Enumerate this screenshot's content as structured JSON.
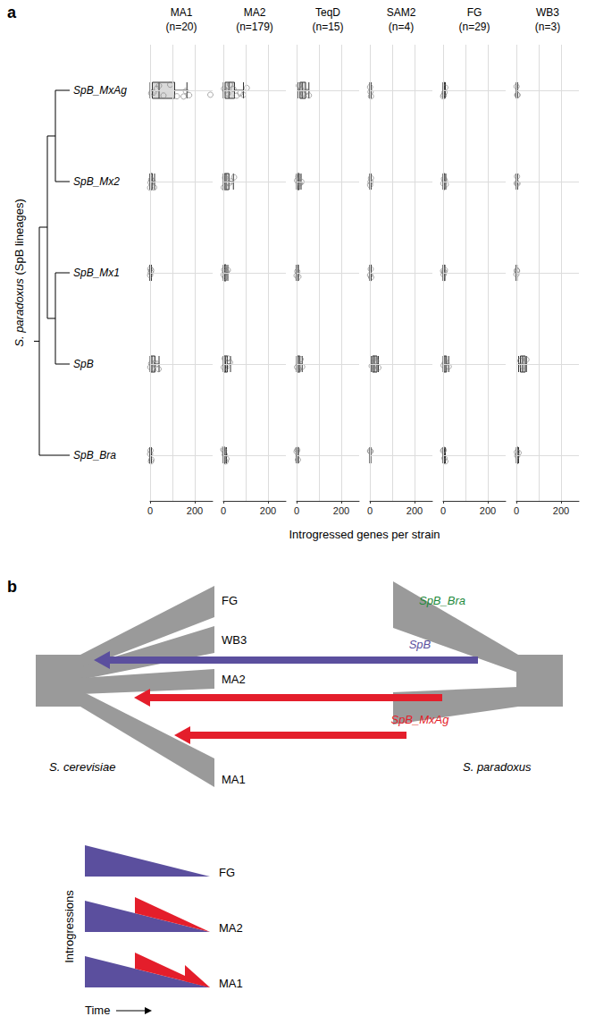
{
  "chart_data": {
    "type": "boxplot",
    "panel_label": "a",
    "x_label": "Introgressed genes per strain",
    "y_label": "S. paradoxus (SpB lineages)",
    "categories": [
      "SpB_MxAg",
      "SpB_Mx2",
      "SpB_Mx1",
      "SpB",
      "SpB_Bra"
    ],
    "tree": [
      [
        [
          "SpB_MxAg",
          "SpB_Mx2"
        ],
        [
          "SpB_Mx1",
          "SpB"
        ]
      ],
      "SpB_Bra"
    ],
    "xlim": [
      0,
      280
    ],
    "xticks": [
      0,
      200
    ],
    "grid": true,
    "color": "#d9d9d9",
    "facets": [
      {
        "title": "MA1",
        "subtitle": "(n=20)",
        "boxes": [
          [
            0,
            10,
            40,
            110,
            165
          ],
          [
            0,
            0,
            3,
            10,
            20
          ],
          [
            0,
            0,
            1,
            3,
            6
          ],
          [
            0,
            2,
            8,
            22,
            40
          ],
          [
            0,
            0,
            1,
            3,
            6
          ]
        ],
        "points": [
          [
            5,
            15,
            30,
            40,
            60,
            90,
            120,
            150,
            160,
            175,
            270
          ],
          [
            0,
            2,
            5,
            12,
            18
          ],
          [
            0,
            1,
            3,
            5
          ],
          [
            1,
            5,
            10,
            20,
            30,
            38
          ],
          [
            0,
            2,
            4,
            6
          ]
        ]
      },
      {
        "title": "MA2",
        "subtitle": "(n=179)",
        "boxes": [
          [
            0,
            8,
            25,
            50,
            90
          ],
          [
            0,
            5,
            12,
            25,
            45
          ],
          [
            0,
            2,
            6,
            12,
            20
          ],
          [
            0,
            4,
            10,
            18,
            32
          ],
          [
            0,
            1,
            4,
            8,
            14
          ]
        ],
        "points": [
          [
            3,
            10,
            20,
            30,
            45,
            60,
            75,
            90,
            105
          ],
          [
            2,
            8,
            15,
            25,
            35,
            48
          ],
          [
            1,
            4,
            8,
            14,
            20
          ],
          [
            2,
            6,
            12,
            20,
            30
          ],
          [
            0,
            3,
            6,
            10,
            14
          ]
        ]
      },
      {
        "title": "TeqD",
        "subtitle": "(n=15)",
        "boxes": [
          [
            5,
            15,
            25,
            40,
            55
          ],
          [
            0,
            2,
            6,
            12,
            20
          ],
          [
            0,
            0,
            2,
            5,
            8
          ],
          [
            0,
            3,
            8,
            15,
            25
          ],
          [
            0,
            0,
            2,
            5,
            8
          ]
        ],
        "points": [
          [
            10,
            20,
            30,
            45,
            55
          ],
          [
            2,
            8,
            15,
            22
          ],
          [
            0,
            3,
            8
          ],
          [
            2,
            10,
            18,
            25
          ],
          [
            0,
            3,
            6
          ]
        ]
      },
      {
        "title": "SAM2",
        "subtitle": "(n=4)",
        "boxes": [
          [
            0,
            1,
            2,
            4,
            5
          ],
          [
            0,
            1,
            2,
            4,
            5
          ],
          [
            0,
            1,
            3,
            5,
            6
          ],
          [
            5,
            12,
            20,
            32,
            38
          ],
          [
            0,
            1,
            2,
            3,
            4
          ]
        ],
        "points": [
          [
            1,
            3,
            5
          ],
          [
            1,
            3,
            5
          ],
          [
            1,
            4,
            6
          ],
          [
            8,
            18,
            28,
            38
          ],
          [
            1,
            3
          ]
        ]
      },
      {
        "title": "FG",
        "subtitle": "(n=29)",
        "boxes": [
          [
            0,
            1,
            3,
            6,
            10
          ],
          [
            0,
            1,
            3,
            7,
            12
          ],
          [
            0,
            1,
            2,
            5,
            8
          ],
          [
            0,
            3,
            8,
            15,
            25
          ],
          [
            0,
            1,
            3,
            6,
            10
          ]
        ],
        "points": [
          [
            0,
            3,
            6,
            10
          ],
          [
            1,
            4,
            8,
            12
          ],
          [
            0,
            2,
            5,
            8
          ],
          [
            2,
            8,
            15,
            25
          ],
          [
            0,
            3,
            6,
            10
          ]
        ]
      },
      {
        "title": "WB3",
        "subtitle": "(n=3)",
        "boxes": [
          [
            0,
            1,
            2,
            4,
            5
          ],
          [
            0,
            1,
            2,
            4,
            5
          ],
          [
            0,
            0,
            1,
            2,
            3
          ],
          [
            10,
            18,
            28,
            40,
            45
          ],
          [
            0,
            2,
            4,
            8,
            10
          ]
        ],
        "points": [
          [
            1,
            4,
            5
          ],
          [
            1,
            3,
            5
          ],
          [
            0,
            2,
            3
          ],
          [
            18,
            28,
            45
          ],
          [
            2,
            4,
            10
          ]
        ]
      }
    ]
  },
  "diagram": {
    "panel_label": "b",
    "left_species": "S. cerevisiae",
    "right_species": "S. paradoxus",
    "left_tips": [
      "FG",
      "WB3",
      "MA2",
      "MA1"
    ],
    "right_tips": [
      {
        "label": "SpB_Bra",
        "color": "#1e8a3c"
      }
    ],
    "arrows": [
      {
        "label": "SpB",
        "color": "#5b4f9e"
      },
      {
        "color": "#e41e2b"
      },
      {
        "label": "SpB_MxAg",
        "color": "#e41e2b"
      }
    ],
    "schematic": {
      "y_label": "Introgressions",
      "x_label": "Time",
      "base_color": "#5b4f9e",
      "pulse_color": "#e41e2b",
      "rows": [
        {
          "label": "FG",
          "pulses": 0
        },
        {
          "label": "MA2",
          "pulses": 1
        },
        {
          "label": "MA1",
          "pulses": 2
        }
      ]
    }
  }
}
